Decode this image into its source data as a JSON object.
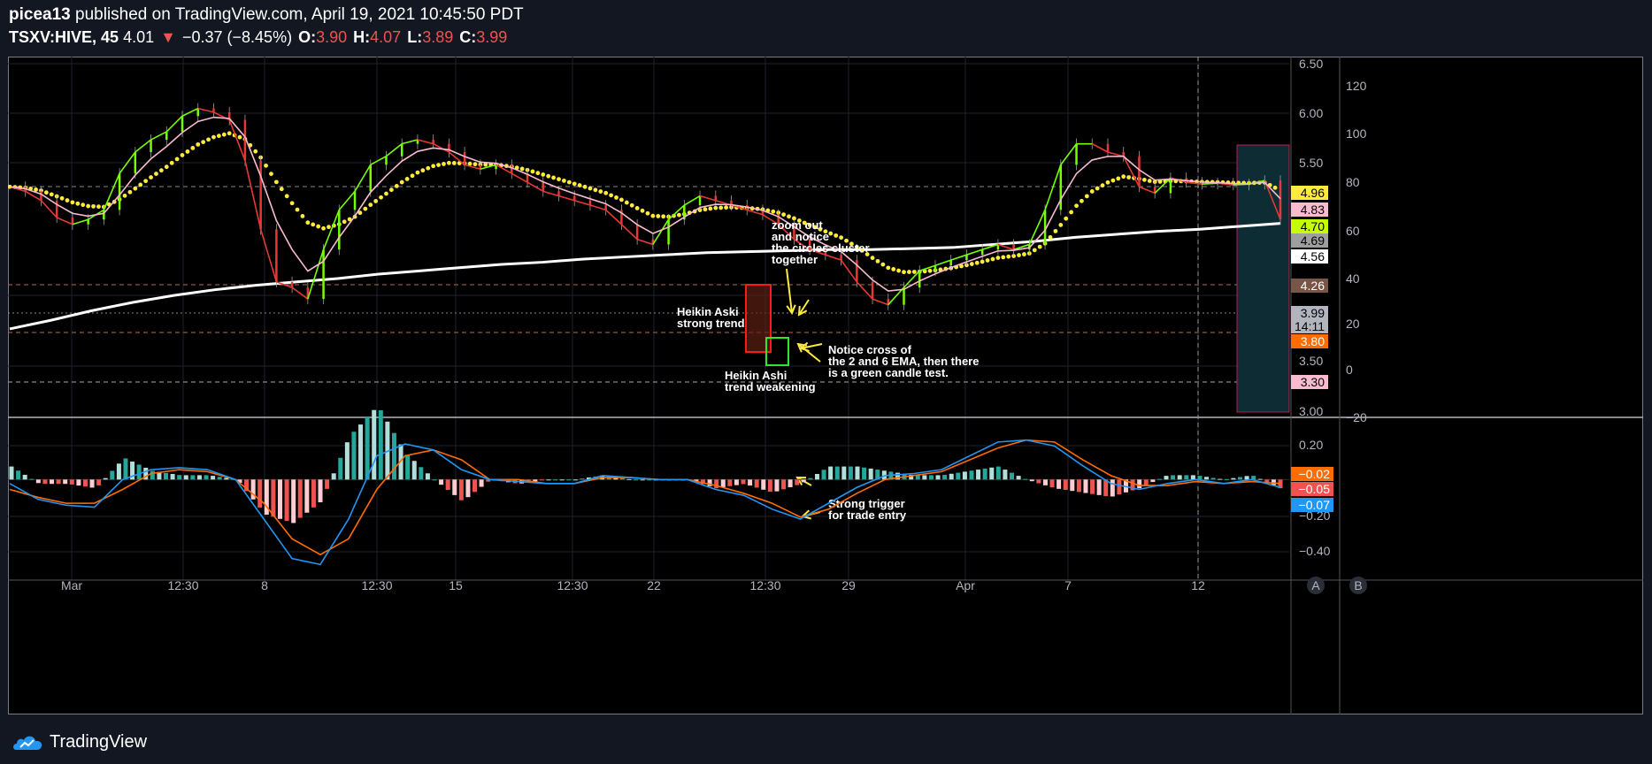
{
  "header": {
    "author": "picea13",
    "published_text": "published on TradingView.com, April 19, 2021 10:45:50 PDT",
    "symbol": "TSXV:HIVE, 45",
    "last": "4.01",
    "arrow": "▼",
    "change": "−0.37 (−8.45%)",
    "o_label": "O:",
    "o_value": "3.90",
    "h_label": "H:",
    "h_value": "4.07",
    "l_label": "L:",
    "l_value": "3.89",
    "c_label": "C:",
    "c_value": "3.99"
  },
  "footer": {
    "brand": "TradingView",
    "icon": "tradingview-cloud-logo-icon"
  },
  "buttons": {
    "a": "A",
    "b": "B"
  },
  "colors": {
    "background": "#000000",
    "panel": "#131722",
    "green": "#76ff03",
    "red": "#e53935",
    "pink": "#f8bbd0",
    "yellow": "#ffeb3b",
    "white": "#ffffff",
    "teal": "#26a69a",
    "macd_blue": "#2196f3",
    "macd_orange": "#ff6d00"
  },
  "chart_data": {
    "type": "line",
    "subtype": "heikin-ashi-with-overlays",
    "x_tick_labels": [
      "Mar",
      "12:30",
      "8",
      "12:30",
      "15",
      "12:30",
      "22",
      "12:30",
      "29",
      "Apr",
      "7",
      "12"
    ],
    "price_axis": {
      "scale": "log",
      "ticks": [
        "6.50",
        "6.00",
        "5.50",
        "3.50",
        "3.00"
      ],
      "range": [
        3.0,
        6.6
      ]
    },
    "secondary_axis": {
      "ticks": [
        "120",
        "100",
        "80",
        "60",
        "40",
        "20",
        "0",
        "−20"
      ]
    },
    "macd_axis": {
      "ticks": [
        "0.20",
        "−0.20",
        "−0.40"
      ],
      "range": [
        -0.5,
        0.27
      ]
    },
    "price_series": [
      4.95,
      4.9,
      4.8,
      4.62,
      4.55,
      4.6,
      4.7,
      5.1,
      5.35,
      5.5,
      5.6,
      5.8,
      5.9,
      5.85,
      5.75,
      5.25,
      4.5,
      4.0,
      3.95,
      3.85,
      4.3,
      4.7,
      4.9,
      5.2,
      5.3,
      5.45,
      5.5,
      5.45,
      5.35,
      5.2,
      5.15,
      5.2,
      5.1,
      5.0,
      4.9,
      4.85,
      4.8,
      4.75,
      4.7,
      4.55,
      4.4,
      4.35,
      4.6,
      4.75,
      4.85,
      4.8,
      4.75,
      4.7,
      4.65,
      4.55,
      4.4,
      4.3,
      4.25,
      4.2,
      4.0,
      3.85,
      3.8,
      3.95,
      4.1,
      4.15,
      4.2,
      4.25,
      4.3,
      4.35,
      4.3,
      4.35,
      4.7,
      5.2,
      5.45,
      5.45,
      5.35,
      5.3,
      4.95,
      4.88,
      5.05,
      5.0,
      4.98,
      4.99,
      4.97,
      4.98,
      5.02,
      4.6
    ],
    "ema_series_count": 3,
    "sma200_series": [
      3.6,
      3.67,
      3.75,
      3.82,
      3.88,
      3.93,
      3.97,
      4.0,
      4.03,
      4.07,
      4.1,
      4.13,
      4.16,
      4.18,
      4.21,
      4.23,
      4.25,
      4.27,
      4.28,
      4.29,
      4.3,
      4.3,
      4.31,
      4.32,
      4.35,
      4.38,
      4.42,
      4.45,
      4.48,
      4.5,
      4.53,
      4.56
    ],
    "macd_line": [
      -0.02,
      -0.1,
      -0.13,
      -0.14,
      0.0,
      0.05,
      0.06,
      0.05,
      0.0,
      -0.2,
      -0.4,
      -0.43,
      -0.2,
      0.12,
      0.18,
      0.15,
      0.05,
      0.0,
      -0.01,
      -0.02,
      -0.02,
      0.02,
      0.01,
      0.0,
      0.0,
      -0.05,
      -0.08,
      -0.15,
      -0.2,
      -0.12,
      -0.04,
      0.02,
      0.03,
      0.05,
      0.12,
      0.19,
      0.2,
      0.17,
      0.07,
      -0.02,
      -0.05,
      -0.02,
      0.0,
      -0.02,
      0.0,
      -0.04
    ],
    "macd_signal": [
      -0.05,
      -0.09,
      -0.12,
      -0.12,
      -0.05,
      0.03,
      0.05,
      0.04,
      0.0,
      -0.12,
      -0.3,
      -0.38,
      -0.3,
      -0.05,
      0.12,
      0.15,
      0.1,
      0.0,
      0.0,
      -0.02,
      -0.02,
      0.01,
      0.01,
      0.0,
      0.0,
      -0.03,
      -0.07,
      -0.12,
      -0.19,
      -0.15,
      -0.07,
      0.0,
      0.02,
      0.04,
      0.1,
      0.16,
      0.2,
      0.19,
      0.1,
      0.02,
      -0.03,
      -0.03,
      -0.01,
      -0.02,
      -0.01,
      -0.02
    ],
    "macd_hist_colors": [
      "#26a69a",
      "#b2dfdb",
      "#ef5350",
      "#ffcdd2"
    ],
    "price_tags": [
      {
        "label": "4.96",
        "bg": "#ffeb3b",
        "fg": "#000000"
      },
      {
        "label": "4.83",
        "bg": "#f8bbd0",
        "fg": "#000000"
      },
      {
        "label": "4.70",
        "bg": "#c6ff00",
        "fg": "#000000"
      },
      {
        "label": "4.69",
        "bg": "#9e9e9e",
        "fg": "#000000"
      },
      {
        "label": "4.56",
        "bg": "#ffffff",
        "fg": "#000000"
      },
      {
        "label": "4.26",
        "bg": "#795548",
        "fg": "#ffffff"
      },
      {
        "label": "3.99",
        "bg": "#b2b5be",
        "fg": "#000000"
      },
      {
        "label": "14:11",
        "bg": "#b2b5be",
        "fg": "#000000"
      },
      {
        "label": "3.80",
        "bg": "#ff6d00",
        "fg": "#ffffff"
      },
      {
        "label": "3.30",
        "bg": "#f8bbd0",
        "fg": "#000000"
      }
    ],
    "macd_tags": [
      {
        "label": "−0.02",
        "bg": "#ff6d00",
        "fg": "#ffffff"
      },
      {
        "label": "−0.05",
        "bg": "#ef5350",
        "fg": "#ffffff"
      },
      {
        "label": "−0.07",
        "bg": "#2196f3",
        "fg": "#ffffff"
      }
    ],
    "annotations": [
      {
        "lines": [
          "zoom out",
          "and notice",
          "the circles cluster",
          "together"
        ]
      },
      {
        "lines": [
          "Heikin Aski",
          "strong trend"
        ]
      },
      {
        "lines": [
          "Heikin Ashi",
          "trend weakening"
        ]
      },
      {
        "lines": [
          "Notice cross of",
          "the 2 and 6 EMA, then there",
          "is a green candle test."
        ]
      },
      {
        "lines": [
          "Strong trigger",
          "for trade entry"
        ]
      }
    ]
  }
}
